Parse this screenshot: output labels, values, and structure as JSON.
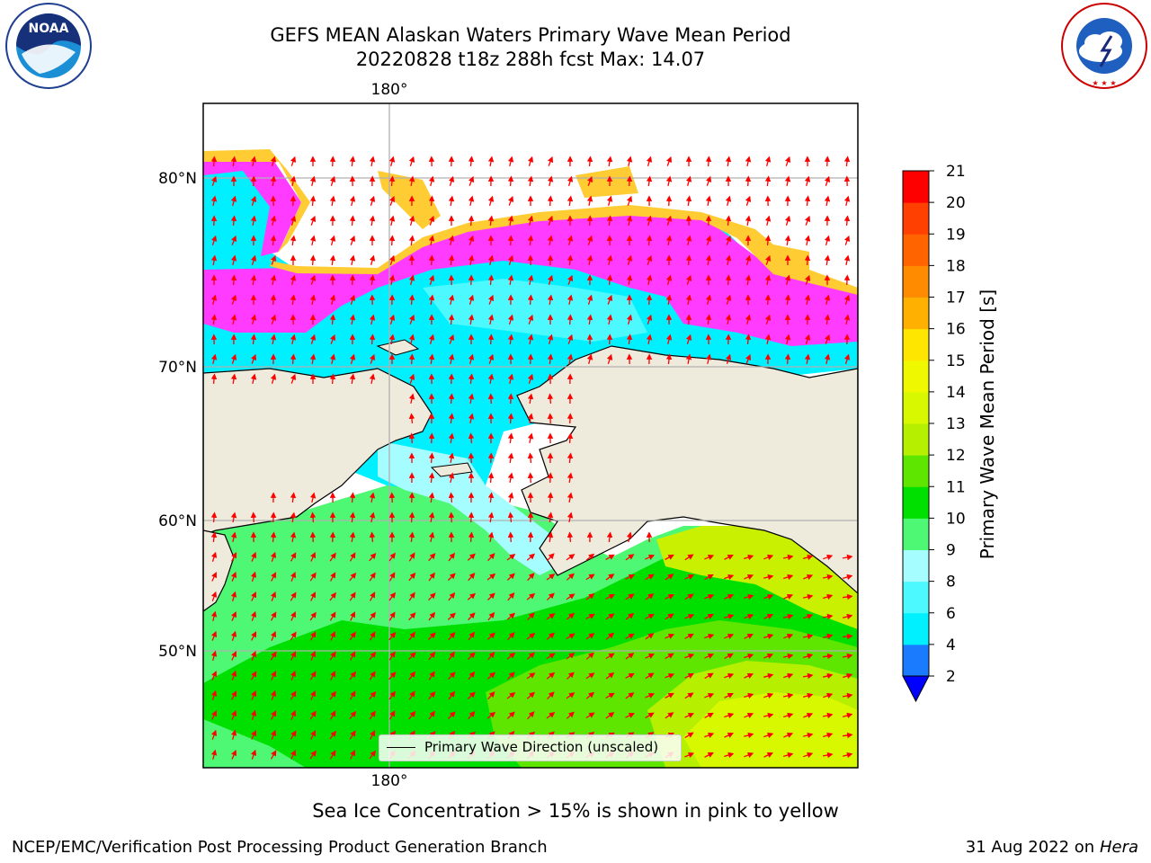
{
  "header": {
    "title_line1": "GEFS MEAN Alaskan Waters Primary Wave Mean Period",
    "title_line2": "20220828 t18z 288h fcst   Max: 14.07"
  },
  "logos": {
    "left": {
      "name": "noaa-logo",
      "text": "NOAA"
    },
    "right": {
      "name": "nws-logo",
      "text": "NATIONAL WEATHER SERVICE"
    }
  },
  "map": {
    "longitude_labels": {
      "top": "180°",
      "bottom": "180°"
    },
    "latitude_labels": [
      "80°N",
      "70°N",
      "60°N",
      "50°N"
    ],
    "land_color": "#efebdc",
    "ice_colors": [
      "#ff3bff",
      "#ffcc33"
    ],
    "arrow_color": "#ff0000"
  },
  "colorbar": {
    "label": "Primary Wave Mean Period [s]",
    "ticks": [
      "2",
      "4",
      "6",
      "8",
      "9",
      "10",
      "11",
      "12",
      "13",
      "14",
      "15",
      "16",
      "17",
      "18",
      "19",
      "20",
      "21"
    ],
    "colors": [
      "#1a7bff",
      "#00f0ff",
      "#4cf9ff",
      "#a6fdff",
      "#4ef874",
      "#00e000",
      "#5ee600",
      "#b6f000",
      "#d8f800",
      "#f0f800",
      "#ffe600",
      "#ffb000",
      "#ff8c00",
      "#ff6400",
      "#ff4000",
      "#ff0000"
    ],
    "extend_color": "#0000ff"
  },
  "legend": {
    "label": "Primary Wave Direction (unscaled)"
  },
  "caption": "Sea Ice Concentration > 15% is shown in pink to yellow",
  "footer": {
    "left": "NCEP/EMC/Verification Post Processing Product Generation Branch",
    "right_date": "31 Aug 2022 on",
    "right_host": "Hera"
  }
}
